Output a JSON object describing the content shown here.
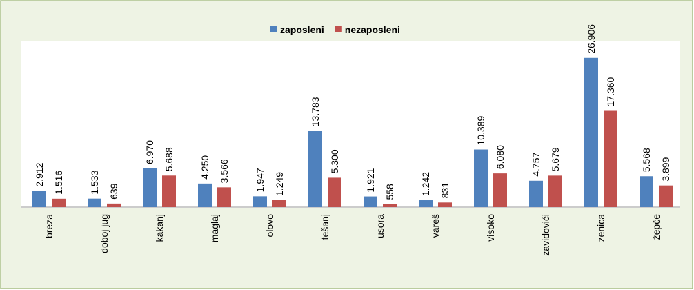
{
  "chart_data": {
    "type": "bar",
    "categories": [
      "breza",
      "doboj jug",
      "kakanj",
      "maglaj",
      "olovo",
      "tešanj",
      "usora",
      "vareš",
      "visoko",
      "zavidovići",
      "zenica",
      "žepče"
    ],
    "legend": "top",
    "series": [
      {
        "name": "zaposleni",
        "color": "#4f81bd",
        "values": [
          2912,
          1533,
          6970,
          4250,
          1947,
          13783,
          1921,
          1242,
          10389,
          4757,
          26906,
          5568
        ],
        "value_labels": [
          "2.912",
          "1.533",
          "6.970",
          "4.250",
          "1.947",
          "13.783",
          "1.921",
          "1.242",
          "10.389",
          "4.757",
          "26.906",
          "5.568"
        ]
      },
      {
        "name": "nezaposleni",
        "color": "#c0504d",
        "values": [
          1516,
          639,
          5688,
          3566,
          1249,
          5300,
          558,
          831,
          6080,
          5679,
          17360,
          3899
        ],
        "value_labels": [
          "1.516",
          "639",
          "5.688",
          "3.566",
          "1.249",
          "5.300",
          "558",
          "831",
          "6.080",
          "5.679",
          "17.360",
          "3.899"
        ]
      }
    ]
  }
}
